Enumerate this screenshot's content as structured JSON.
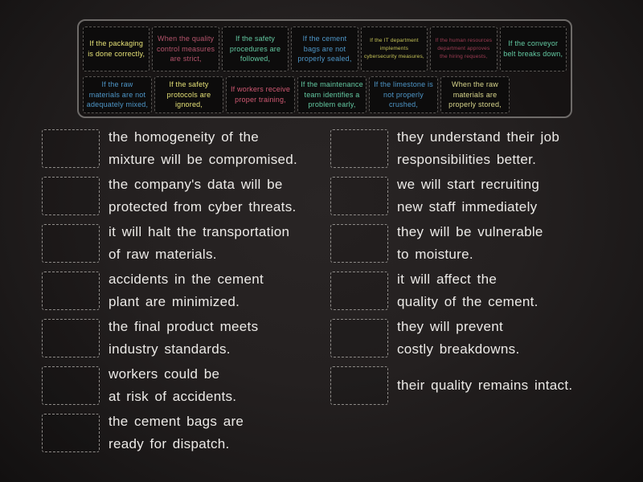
{
  "tray": {
    "row1": [
      {
        "text": "If the packaging is done correctly,",
        "color": "#e6e277"
      },
      {
        "text": "When the quality control measures are strict,",
        "color": "#b5546c"
      },
      {
        "text": "If the safety procedures are followed,",
        "color": "#63c9a2"
      },
      {
        "text": "If the cement bags are not properly sealed,",
        "color": "#4e97c9"
      },
      {
        "text": "If the IT department implements cybersecurity measures,",
        "color": "#c9c659"
      },
      {
        "text": "If the human resources department approves the hiring requests,",
        "color": "#a23d55"
      },
      {
        "text": "If the conveyor belt breaks down,",
        "color": "#63c9a2"
      }
    ],
    "row2": [
      {
        "text": "If the raw materials are not adequately mixed,",
        "color": "#4e97c9"
      },
      {
        "text": "If the safety protocols are ignored,",
        "color": "#e6e277"
      },
      {
        "text": "If workers receive proper training,",
        "color": "#d05973"
      },
      {
        "text": "If the maintenance team identifies a problem early,",
        "color": "#63c9a2"
      },
      {
        "text": "If the limestone is not properly crushed,",
        "color": "#4e97c9"
      },
      {
        "text": "When the raw materials are properly stored,",
        "color": "#d9d68c"
      }
    ]
  },
  "answers": {
    "left": [
      {
        "line1": "the homogeneity of the",
        "line2": "mixture will be compromised."
      },
      {
        "line1": "the company's data will be",
        "line2": "protected from cyber threats."
      },
      {
        "line1": "it will halt the transportation",
        "line2": "of raw materials."
      },
      {
        "line1": "accidents in the cement",
        "line2": "plant are minimized."
      },
      {
        "line1": "the final product meets",
        "line2": "industry standards."
      },
      {
        "line1": "workers could be",
        "line2": "at risk of accidents."
      },
      {
        "line1": "the cement bags are",
        "line2": "ready for dispatch."
      }
    ],
    "right": [
      {
        "line1": "they understand their job",
        "line2": "responsibilities better."
      },
      {
        "line1": "we will start recruiting",
        "line2": "new staff immediately"
      },
      {
        "line1": "they will be vulnerable",
        "line2": "to moisture."
      },
      {
        "line1": "it will affect the",
        "line2": "quality of the cement."
      },
      {
        "line1": "they will prevent",
        "line2": "costly breakdowns."
      },
      {
        "line1": "their quality remains intact.",
        "line2": ""
      }
    ]
  },
  "colors": {
    "background": "#242020",
    "chalk_text": "#eceae7",
    "tray_border": "#6e6b69",
    "dropzone_border": "#8f8c89",
    "card_background": "#0d0c0c"
  }
}
